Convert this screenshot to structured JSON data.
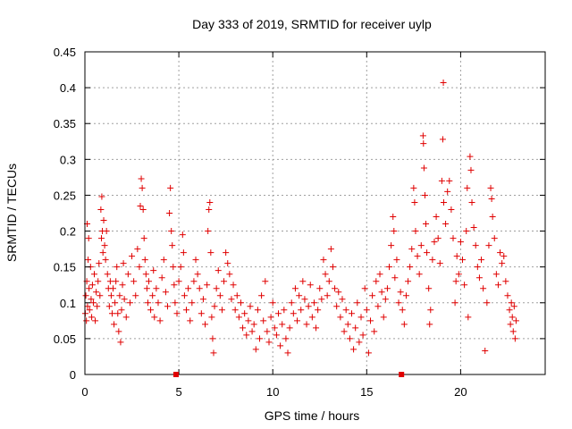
{
  "chart_data": {
    "type": "scatter",
    "title": "Day 333 of 2019, SRMTID for receiver uylp",
    "xlabel": "GPS time / hours",
    "ylabel": "SRMTID / TECUs",
    "xlim": [
      0,
      24.5
    ],
    "ylim": [
      0,
      0.45
    ],
    "xticks": [
      0,
      5,
      10,
      15,
      20
    ],
    "xtick_labels": [
      "0",
      "5",
      "10",
      "15",
      "20"
    ],
    "yticks": [
      0,
      0.05,
      0.1,
      0.15,
      0.2,
      0.25,
      0.3,
      0.35,
      0.4,
      0.45
    ],
    "ytick_labels": [
      "0",
      "0.05",
      "0.1",
      "0.15",
      "0.2",
      "0.25",
      "0.3",
      "0.35",
      "0.4",
      "0.45"
    ],
    "grid": true,
    "colors": {
      "series": "#e00000",
      "grid": "#a0a0a0",
      "axis": "#000000"
    },
    "series": [
      {
        "marker": "plus",
        "points": [
          [
            0.02,
            0.085
          ],
          [
            0.05,
            0.11
          ],
          [
            0.08,
            0.075
          ],
          [
            0.1,
            0.13
          ],
          [
            0.12,
            0.21
          ],
          [
            0.14,
            0.095
          ],
          [
            0.17,
            0.16
          ],
          [
            0.2,
            0.19
          ],
          [
            0.22,
            0.12
          ],
          [
            0.25,
            0.09
          ],
          [
            0.3,
            0.15
          ],
          [
            0.33,
            0.105
          ],
          [
            0.36,
            0.08
          ],
          [
            0.4,
            0.125
          ],
          [
            0.45,
            0.1
          ],
          [
            0.5,
            0.14
          ],
          [
            0.55,
            0.075
          ],
          [
            0.6,
            0.115
          ],
          [
            0.65,
            0.095
          ],
          [
            0.7,
            0.13
          ],
          [
            0.75,
            0.155
          ],
          [
            0.8,
            0.11
          ],
          [
            0.85,
            0.23
          ],
          [
            0.88,
            0.19
          ],
          [
            0.9,
            0.248
          ],
          [
            0.93,
            0.2
          ],
          [
            0.96,
            0.17
          ],
          [
            1.0,
            0.215
          ],
          [
            1.05,
            0.18
          ],
          [
            1.1,
            0.16
          ],
          [
            1.15,
            0.2
          ],
          [
            1.2,
            0.14
          ],
          [
            1.25,
            0.12
          ],
          [
            1.3,
            0.095
          ],
          [
            1.35,
            0.13
          ],
          [
            1.4,
            0.11
          ],
          [
            1.45,
            0.085
          ],
          [
            1.5,
            0.12
          ],
          [
            1.55,
            0.07
          ],
          [
            1.6,
            0.1
          ],
          [
            1.65,
            0.13
          ],
          [
            1.7,
            0.15
          ],
          [
            1.75,
            0.085
          ],
          [
            1.8,
            0.06
          ],
          [
            1.85,
            0.11
          ],
          [
            1.9,
            0.045
          ],
          [
            1.95,
            0.09
          ],
          [
            2.0,
            0.125
          ],
          [
            2.05,
            0.155
          ],
          [
            2.1,
            0.105
          ],
          [
            2.2,
            0.08
          ],
          [
            2.3,
            0.14
          ],
          [
            2.4,
            0.1
          ],
          [
            2.5,
            0.165
          ],
          [
            2.6,
            0.13
          ],
          [
            2.7,
            0.11
          ],
          [
            2.8,
            0.175
          ],
          [
            2.9,
            0.15
          ],
          [
            2.95,
            0.235
          ],
          [
            3.0,
            0.273
          ],
          [
            3.05,
            0.26
          ],
          [
            3.1,
            0.23
          ],
          [
            3.15,
            0.19
          ],
          [
            3.2,
            0.16
          ],
          [
            3.25,
            0.14
          ],
          [
            3.3,
            0.12
          ],
          [
            3.35,
            0.1
          ],
          [
            3.4,
            0.13
          ],
          [
            3.5,
            0.09
          ],
          [
            3.6,
            0.11
          ],
          [
            3.65,
            0.145
          ],
          [
            3.7,
            0.08
          ],
          [
            3.8,
            0.12
          ],
          [
            3.9,
            0.1
          ],
          [
            4.0,
            0.075
          ],
          [
            4.1,
            0.135
          ],
          [
            4.2,
            0.16
          ],
          [
            4.3,
            0.115
          ],
          [
            4.4,
            0.095
          ],
          [
            4.5,
            0.225
          ],
          [
            4.55,
            0.26
          ],
          [
            4.6,
            0.2
          ],
          [
            4.65,
            0.18
          ],
          [
            4.7,
            0.15
          ],
          [
            4.75,
            0.125
          ],
          [
            4.8,
            0.1
          ],
          [
            4.9,
            0.085
          ],
          [
            5.0,
            0.13
          ],
          [
            5.1,
            0.15
          ],
          [
            5.2,
            0.195
          ],
          [
            5.25,
            0.17
          ],
          [
            5.3,
            0.11
          ],
          [
            5.4,
            0.09
          ],
          [
            5.5,
            0.12
          ],
          [
            5.6,
            0.075
          ],
          [
            5.7,
            0.1
          ],
          [
            5.8,
            0.13
          ],
          [
            5.9,
            0.16
          ],
          [
            6.0,
            0.14
          ],
          [
            6.1,
            0.12
          ],
          [
            6.2,
            0.085
          ],
          [
            6.3,
            0.105
          ],
          [
            6.4,
            0.07
          ],
          [
            6.5,
            0.125
          ],
          [
            6.55,
            0.2
          ],
          [
            6.6,
            0.23
          ],
          [
            6.65,
            0.24
          ],
          [
            6.7,
            0.17
          ],
          [
            6.75,
            0.08
          ],
          [
            6.8,
            0.05
          ],
          [
            6.85,
            0.03
          ],
          [
            6.9,
            0.095
          ],
          [
            7.0,
            0.12
          ],
          [
            7.1,
            0.145
          ],
          [
            7.2,
            0.11
          ],
          [
            7.3,
            0.09
          ],
          [
            7.4,
            0.13
          ],
          [
            7.5,
            0.17
          ],
          [
            7.6,
            0.155
          ],
          [
            7.7,
            0.14
          ],
          [
            7.8,
            0.105
          ],
          [
            7.9,
            0.125
          ],
          [
            8.0,
            0.09
          ],
          [
            8.1,
            0.11
          ],
          [
            8.2,
            0.08
          ],
          [
            8.3,
            0.1
          ],
          [
            8.4,
            0.065
          ],
          [
            8.5,
            0.085
          ],
          [
            8.6,
            0.055
          ],
          [
            8.7,
            0.075
          ],
          [
            8.8,
            0.095
          ],
          [
            8.9,
            0.06
          ],
          [
            9.0,
            0.07
          ],
          [
            9.1,
            0.035
          ],
          [
            9.2,
            0.09
          ],
          [
            9.3,
            0.05
          ],
          [
            9.4,
            0.11
          ],
          [
            9.5,
            0.075
          ],
          [
            9.6,
            0.13
          ],
          [
            9.7,
            0.06
          ],
          [
            9.8,
            0.045
          ],
          [
            9.9,
            0.08
          ],
          [
            10.0,
            0.1
          ],
          [
            10.1,
            0.065
          ],
          [
            10.2,
            0.055
          ],
          [
            10.3,
            0.085
          ],
          [
            10.4,
            0.04
          ],
          [
            10.5,
            0.07
          ],
          [
            10.6,
            0.09
          ],
          [
            10.7,
            0.05
          ],
          [
            10.8,
            0.03
          ],
          [
            10.9,
            0.065
          ],
          [
            11.0,
            0.1
          ],
          [
            11.1,
            0.085
          ],
          [
            11.2,
            0.12
          ],
          [
            11.3,
            0.075
          ],
          [
            11.4,
            0.11
          ],
          [
            11.5,
            0.09
          ],
          [
            11.6,
            0.13
          ],
          [
            11.7,
            0.105
          ],
          [
            11.8,
            0.07
          ],
          [
            11.9,
            0.095
          ],
          [
            12.0,
            0.125
          ],
          [
            12.1,
            0.08
          ],
          [
            12.2,
            0.1
          ],
          [
            12.3,
            0.065
          ],
          [
            12.4,
            0.09
          ],
          [
            12.5,
            0.12
          ],
          [
            12.6,
            0.105
          ],
          [
            12.7,
            0.16
          ],
          [
            12.8,
            0.14
          ],
          [
            12.9,
            0.11
          ],
          [
            13.0,
            0.13
          ],
          [
            13.1,
            0.175
          ],
          [
            13.2,
            0.15
          ],
          [
            13.3,
            0.12
          ],
          [
            13.4,
            0.095
          ],
          [
            13.5,
            0.115
          ],
          [
            13.6,
            0.08
          ],
          [
            13.7,
            0.105
          ],
          [
            13.8,
            0.06
          ],
          [
            13.9,
            0.09
          ],
          [
            14.0,
            0.07
          ],
          [
            14.1,
            0.05
          ],
          [
            14.2,
            0.085
          ],
          [
            14.3,
            0.035
          ],
          [
            14.4,
            0.065
          ],
          [
            14.5,
            0.1
          ],
          [
            14.6,
            0.045
          ],
          [
            14.7,
            0.08
          ],
          [
            14.8,
            0.055
          ],
          [
            14.9,
            0.12
          ],
          [
            15.0,
            0.09
          ],
          [
            15.1,
            0.03
          ],
          [
            15.2,
            0.075
          ],
          [
            15.3,
            0.11
          ],
          [
            15.4,
            0.06
          ],
          [
            15.5,
            0.13
          ],
          [
            15.6,
            0.095
          ],
          [
            15.7,
            0.14
          ],
          [
            15.8,
            0.115
          ],
          [
            15.9,
            0.08
          ],
          [
            16.0,
            0.105
          ],
          [
            16.1,
            0.12
          ],
          [
            16.2,
            0.15
          ],
          [
            16.3,
            0.18
          ],
          [
            16.4,
            0.22
          ],
          [
            16.45,
            0.2
          ],
          [
            16.5,
            0.135
          ],
          [
            16.6,
            0.16
          ],
          [
            16.7,
            0.1
          ],
          [
            16.8,
            0.115
          ],
          [
            16.9,
            0.09
          ],
          [
            17.0,
            0.07
          ],
          [
            17.1,
            0.11
          ],
          [
            17.2,
            0.13
          ],
          [
            17.3,
            0.15
          ],
          [
            17.4,
            0.175
          ],
          [
            17.5,
            0.26
          ],
          [
            17.55,
            0.24
          ],
          [
            17.6,
            0.2
          ],
          [
            17.7,
            0.165
          ],
          [
            17.8,
            0.14
          ],
          [
            17.9,
            0.18
          ],
          [
            18.0,
            0.333
          ],
          [
            18.02,
            0.322
          ],
          [
            18.05,
            0.288
          ],
          [
            18.1,
            0.25
          ],
          [
            18.15,
            0.21
          ],
          [
            18.2,
            0.17
          ],
          [
            18.3,
            0.12
          ],
          [
            18.35,
            0.07
          ],
          [
            18.4,
            0.09
          ],
          [
            18.5,
            0.16
          ],
          [
            18.6,
            0.185
          ],
          [
            18.7,
            0.22
          ],
          [
            18.8,
            0.19
          ],
          [
            18.9,
            0.155
          ],
          [
            19.0,
            0.27
          ],
          [
            19.05,
            0.328
          ],
          [
            19.08,
            0.407
          ],
          [
            19.1,
            0.24
          ],
          [
            19.2,
            0.21
          ],
          [
            19.3,
            0.255
          ],
          [
            19.4,
            0.27
          ],
          [
            19.5,
            0.23
          ],
          [
            19.6,
            0.19
          ],
          [
            19.7,
            0.1
          ],
          [
            19.75,
            0.13
          ],
          [
            19.8,
            0.165
          ],
          [
            19.9,
            0.14
          ],
          [
            20.0,
            0.185
          ],
          [
            20.1,
            0.16
          ],
          [
            20.2,
            0.125
          ],
          [
            20.3,
            0.2
          ],
          [
            20.35,
            0.26
          ],
          [
            20.4,
            0.08
          ],
          [
            20.5,
            0.304
          ],
          [
            20.55,
            0.285
          ],
          [
            20.6,
            0.24
          ],
          [
            20.7,
            0.205
          ],
          [
            20.8,
            0.18
          ],
          [
            20.9,
            0.15
          ],
          [
            21.0,
            0.135
          ],
          [
            21.1,
            0.16
          ],
          [
            21.2,
            0.12
          ],
          [
            21.3,
            0.033
          ],
          [
            21.4,
            0.1
          ],
          [
            21.5,
            0.18
          ],
          [
            21.6,
            0.26
          ],
          [
            21.65,
            0.245
          ],
          [
            21.7,
            0.22
          ],
          [
            21.8,
            0.19
          ],
          [
            21.9,
            0.14
          ],
          [
            22.0,
            0.125
          ],
          [
            22.1,
            0.17
          ],
          [
            22.2,
            0.155
          ],
          [
            22.3,
            0.165
          ],
          [
            22.4,
            0.13
          ],
          [
            22.5,
            0.11
          ],
          [
            22.6,
            0.09
          ],
          [
            22.65,
            0.07
          ],
          [
            22.7,
            0.1
          ],
          [
            22.75,
            0.08
          ],
          [
            22.8,
            0.06
          ],
          [
            22.85,
            0.095
          ],
          [
            22.9,
            0.05
          ],
          [
            22.95,
            0.075
          ]
        ]
      }
    ],
    "x_axis_markers": [
      4.85,
      16.85
    ]
  }
}
